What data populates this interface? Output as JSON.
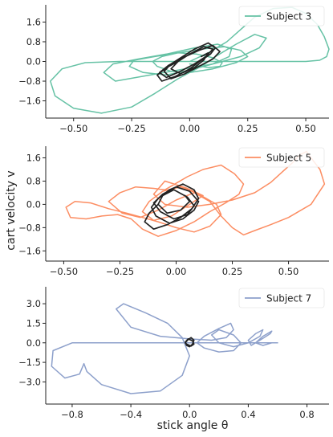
{
  "figure": {
    "xlabel": "stick angle θ",
    "ylabel": "cart velocity v"
  },
  "chart_data": [
    {
      "type": "line",
      "legend": "Subject 3",
      "color": "#66c2a5",
      "xlim": [
        -0.62,
        0.6
      ],
      "ylim": [
        -2.3,
        2.3
      ],
      "xticks": [
        -0.5,
        -0.25,
        0.0,
        0.25,
        0.5
      ],
      "xtick_labels": [
        "−0.50",
        "−0.25",
        "0.00",
        "0.25",
        "0.50"
      ],
      "yticks": [
        1.6,
        0.8,
        0.0,
        -0.8,
        -1.6
      ],
      "ytick_labels": [
        "1.6",
        "0.8",
        "0.0",
        "−0.8",
        "−1.6"
      ],
      "grid": false,
      "legend_position": "top-right",
      "series": [
        {
          "name": "Subject 3",
          "color": "#66c2a5",
          "x": [
            0.0,
            0.08,
            0.16,
            0.22,
            0.28,
            0.36,
            0.44,
            0.5,
            0.55,
            0.58,
            0.6,
            0.59,
            0.56,
            0.5,
            0.42,
            0.33,
            0.22,
            0.1,
            -0.02,
            -0.15,
            -0.3,
            -0.45,
            -0.55,
            -0.6,
            -0.58,
            -0.5,
            -0.38,
            -0.25,
            -0.15,
            -0.05,
            0.05,
            0.12,
            0.2,
            0.28,
            0.33,
            0.3,
            0.22,
            0.1,
            -0.05,
            -0.2,
            -0.32,
            -0.37,
            -0.33,
            -0.22,
            -0.1,
            0.02,
            0.12,
            0.18,
            0.17,
            0.1,
            0.0,
            -0.1,
            -0.2,
            -0.26,
            -0.24,
            -0.15,
            -0.05,
            0.05,
            0.15,
            0.22,
            0.25,
            0.2,
            0.1,
            0.0,
            -0.08,
            -0.14,
            -0.16,
            -0.12,
            -0.05,
            0.03,
            0.1,
            0.14,
            0.13,
            0.08,
            0.0
          ],
          "y": [
            0.0,
            0.35,
            0.8,
            1.3,
            1.8,
            2.15,
            2.2,
            1.95,
            1.5,
            1.0,
            0.5,
            0.2,
            0.05,
            0.0,
            0.0,
            0.0,
            0.0,
            0.0,
            0.0,
            0.0,
            0.0,
            -0.05,
            -0.3,
            -0.8,
            -1.4,
            -1.9,
            -2.1,
            -1.85,
            -1.3,
            -0.7,
            -0.2,
            0.25,
            0.7,
            1.1,
            0.95,
            0.55,
            0.2,
            -0.1,
            -0.35,
            -0.6,
            -0.8,
            -0.45,
            -0.1,
            0.1,
            0.3,
            0.55,
            0.7,
            0.5,
            0.2,
            -0.1,
            -0.35,
            -0.55,
            -0.45,
            -0.2,
            0.05,
            0.2,
            0.35,
            0.5,
            0.6,
            0.45,
            0.2,
            -0.05,
            -0.3,
            -0.45,
            -0.4,
            -0.2,
            0.0,
            0.2,
            0.35,
            0.3,
            0.15,
            -0.05,
            -0.2,
            -0.25,
            -0.1
          ]
        },
        {
          "name": "",
          "color": "#222222",
          "x": [
            -0.05,
            -0.1,
            -0.14,
            -0.12,
            -0.06,
            0.0,
            0.05,
            0.09,
            0.11,
            0.08,
            0.02,
            -0.03,
            -0.08,
            -0.11,
            -0.08,
            -0.02,
            0.04,
            0.1,
            0.13,
            0.1,
            0.04,
            -0.03,
            -0.09,
            -0.13,
            -0.1,
            -0.04,
            0.02,
            0.07,
            0.1,
            0.06,
            0.0,
            -0.05,
            -0.08,
            -0.04,
            0.02,
            0.06,
            0.08,
            0.05
          ],
          "y": [
            0.0,
            -0.25,
            -0.55,
            -0.8,
            -0.6,
            -0.3,
            0.05,
            0.3,
            0.55,
            0.75,
            0.5,
            0.2,
            -0.1,
            -0.4,
            -0.7,
            -0.5,
            -0.2,
            0.1,
            0.4,
            0.65,
            0.45,
            0.15,
            -0.15,
            -0.45,
            -0.65,
            -0.4,
            -0.1,
            0.2,
            0.5,
            0.6,
            0.3,
            0.0,
            -0.3,
            -0.5,
            -0.25,
            0.05,
            0.35,
            0.2
          ]
        }
      ]
    },
    {
      "type": "line",
      "legend": "Subject 5",
      "color": "#fc8d62",
      "xlim": [
        -0.58,
        0.68
      ],
      "ylim": [
        -1.95,
        2.0
      ],
      "xticks": [
        -0.5,
        -0.25,
        0.0,
        0.25,
        0.5
      ],
      "xtick_labels": [
        "−0.50",
        "−0.25",
        "0.00",
        "0.25",
        "0.50"
      ],
      "yticks": [
        1.6,
        0.8,
        0.0,
        -0.8,
        -1.6
      ],
      "ytick_labels": [
        "1.6",
        "0.8",
        "0.0",
        "−0.8",
        "−1.6"
      ],
      "grid": false,
      "legend_position": "top-right",
      "series": [
        {
          "name": "Subject 5",
          "color": "#fc8d62",
          "x": [
            -0.05,
            0.05,
            0.12,
            0.2,
            0.26,
            0.3,
            0.28,
            0.22,
            0.15,
            0.08,
            0.0,
            -0.08,
            -0.15,
            -0.2,
            -0.26,
            -0.33,
            -0.4,
            -0.47,
            -0.49,
            -0.45,
            -0.38,
            -0.3,
            -0.22,
            -0.15,
            -0.08,
            0.0,
            0.08,
            0.15,
            0.2,
            0.18,
            0.1,
            0.02,
            -0.06,
            -0.12,
            -0.15,
            -0.1,
            -0.02,
            0.06,
            0.12,
            0.05,
            -0.05,
            -0.1,
            -0.05,
            0.05,
            0.15,
            0.25,
            0.35,
            0.42,
            0.47,
            0.52,
            0.55,
            0.58,
            0.6,
            0.64,
            0.66,
            0.6,
            0.5,
            0.42,
            0.35,
            0.3,
            0.25,
            0.2,
            0.15,
            0.08,
            0.0,
            -0.08,
            -0.16,
            -0.24,
            -0.3,
            -0.25,
            -0.18,
            -0.1,
            -0.05
          ],
          "y": [
            0.5,
            0.95,
            1.2,
            1.35,
            1.05,
            0.7,
            0.35,
            0.05,
            -0.25,
            -0.6,
            -0.9,
            -1.1,
            -0.85,
            -0.5,
            -0.35,
            -0.4,
            -0.5,
            -0.45,
            -0.1,
            0.1,
            0.05,
            -0.15,
            -0.3,
            -0.45,
            -0.6,
            -0.8,
            -0.95,
            -0.75,
            -0.35,
            0.0,
            0.35,
            0.6,
            0.45,
            0.1,
            -0.25,
            -0.55,
            -0.4,
            0.0,
            0.3,
            0.55,
            0.8,
            0.35,
            0.0,
            -0.1,
            0.0,
            0.15,
            0.4,
            0.75,
            1.1,
            1.45,
            1.7,
            1.82,
            1.6,
            1.2,
            0.7,
            0.0,
            -0.45,
            -0.7,
            -0.9,
            -1.05,
            -0.8,
            -0.4,
            0.1,
            0.4,
            0.15,
            -0.2,
            -0.45,
            -0.3,
            0.1,
            0.4,
            0.6,
            0.55,
            0.5
          ]
        },
        {
          "name": "",
          "color": "#222222",
          "x": [
            -0.08,
            -0.12,
            -0.14,
            -0.1,
            -0.04,
            0.02,
            0.07,
            0.1,
            0.08,
            0.03,
            -0.03,
            -0.08,
            -0.11,
            -0.09,
            -0.03,
            0.03,
            0.08,
            0.1,
            0.06,
            0.0,
            -0.06,
            -0.1,
            -0.07,
            -0.01,
            0.05,
            0.08,
            0.05,
            -0.01,
            -0.06,
            -0.08,
            -0.04,
            0.02,
            0.06,
            0.04
          ],
          "y": [
            0.0,
            -0.3,
            -0.6,
            -0.85,
            -0.7,
            -0.45,
            -0.15,
            0.2,
            0.5,
            0.7,
            0.5,
            0.2,
            -0.1,
            -0.4,
            -0.65,
            -0.5,
            -0.2,
            0.1,
            0.45,
            0.6,
            0.35,
            0.05,
            -0.25,
            -0.5,
            -0.35,
            -0.05,
            0.25,
            0.5,
            0.3,
            0.0,
            -0.3,
            -0.2,
            0.1,
            0.3
          ]
        }
      ]
    },
    {
      "type": "line",
      "legend": "Subject 7",
      "color": "#8da0cb",
      "xlim": [
        -0.98,
        0.95
      ],
      "ylim": [
        -4.7,
        4.3
      ],
      "xticks": [
        -0.8,
        -0.4,
        0.0,
        0.4,
        0.8
      ],
      "xtick_labels": [
        "−0.8",
        "−0.4",
        "0.0",
        "0.4",
        "0.8"
      ],
      "yticks": [
        3.0,
        1.5,
        0.0,
        -1.5,
        -3.0
      ],
      "ytick_labels": [
        "3.0",
        "1.5",
        "0.0",
        "−1.5",
        "−3.0"
      ],
      "grid": false,
      "legend_position": "top-right",
      "series": [
        {
          "name": "Subject 7",
          "color": "#8da0cb",
          "x": [
            0.6,
            0.45,
            0.3,
            0.15,
            0.0,
            -0.2,
            -0.4,
            -0.6,
            -0.8,
            -0.93,
            -0.94,
            -0.85,
            -0.75,
            -0.72,
            -0.7,
            -0.6,
            -0.4,
            -0.2,
            -0.05,
            0.0,
            -0.05,
            -0.15,
            -0.3,
            -0.45,
            -0.5,
            -0.4,
            -0.2,
            0.0,
            0.15,
            0.25,
            0.3,
            0.28,
            0.2,
            0.1,
            0.05,
            0.1,
            0.2,
            0.3,
            0.35,
            0.3,
            0.2,
            0.15,
            0.2,
            0.3,
            0.4,
            0.48,
            0.5,
            0.45,
            0.4,
            0.42,
            0.48,
            0.55,
            0.56,
            0.5,
            0.45,
            0.5,
            0.56,
            0.6
          ],
          "y": [
            0.0,
            0.0,
            0.0,
            0.0,
            0.0,
            0.0,
            0.0,
            0.0,
            0.0,
            -0.6,
            -1.8,
            -2.7,
            -2.4,
            -1.6,
            -2.2,
            -3.2,
            -3.9,
            -3.7,
            -2.5,
            -1.0,
            0.4,
            1.5,
            2.3,
            3.0,
            2.6,
            1.2,
            0.5,
            0.3,
            0.2,
            0.4,
            1.0,
            1.5,
            1.1,
            0.5,
            0.0,
            -0.4,
            -0.7,
            -0.6,
            0.0,
            0.6,
            1.0,
            0.6,
            0.0,
            -0.3,
            0.0,
            0.5,
            1.0,
            0.7,
            0.2,
            -0.2,
            0.2,
            0.7,
            0.9,
            0.5,
            0.0,
            -0.2,
            0.0,
            0.0
          ]
        },
        {
          "name": "",
          "color": "#222222",
          "x": [
            -0.03,
            -0.01,
            0.01,
            0.03,
            0.02,
            0.0,
            -0.02,
            -0.03,
            -0.01,
            0.02,
            0.03,
            0.01,
            -0.02,
            -0.03
          ],
          "y": [
            0.0,
            0.25,
            0.4,
            0.2,
            -0.1,
            -0.3,
            -0.2,
            0.05,
            0.3,
            0.15,
            -0.1,
            -0.25,
            -0.1,
            0.0
          ]
        }
      ]
    }
  ]
}
